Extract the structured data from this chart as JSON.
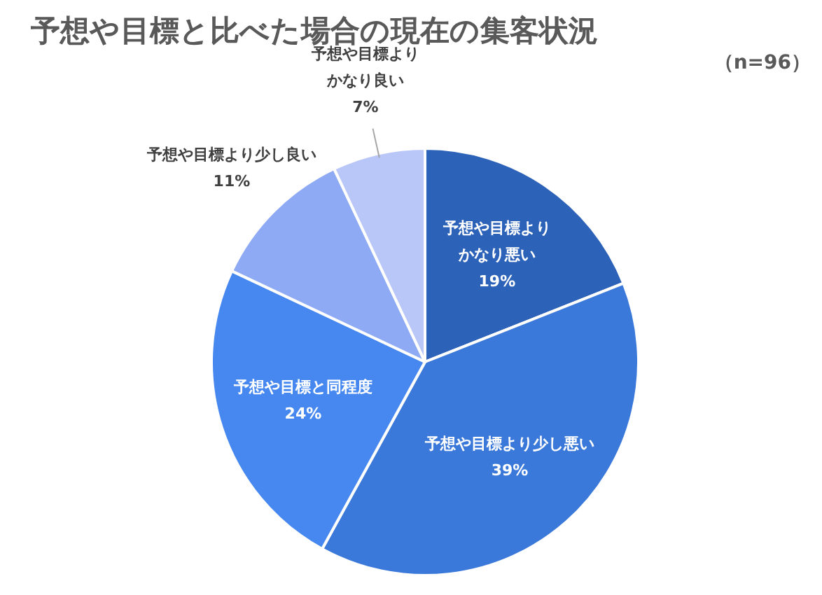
{
  "chart_data": {
    "type": "pie",
    "title": "予想や目標と比べた場合の現在の集客状況",
    "subtitle": "（n=96）",
    "categories": [
      "予想や目標よりかなり悪い",
      "予想や目標より少し悪い",
      "予想や目標と同程度",
      "予想や目標より少し良い",
      "予想や目標よりかなり良い"
    ],
    "values": [
      19,
      39,
      24,
      11,
      7
    ],
    "colors": [
      "#2d62b9",
      "#3a78d9",
      "#4688f0",
      "#8eaaf4",
      "#b9c6f8"
    ],
    "value_labels": [
      "19%",
      "39%",
      "24%",
      "11%",
      "7%"
    ],
    "legend": false
  }
}
